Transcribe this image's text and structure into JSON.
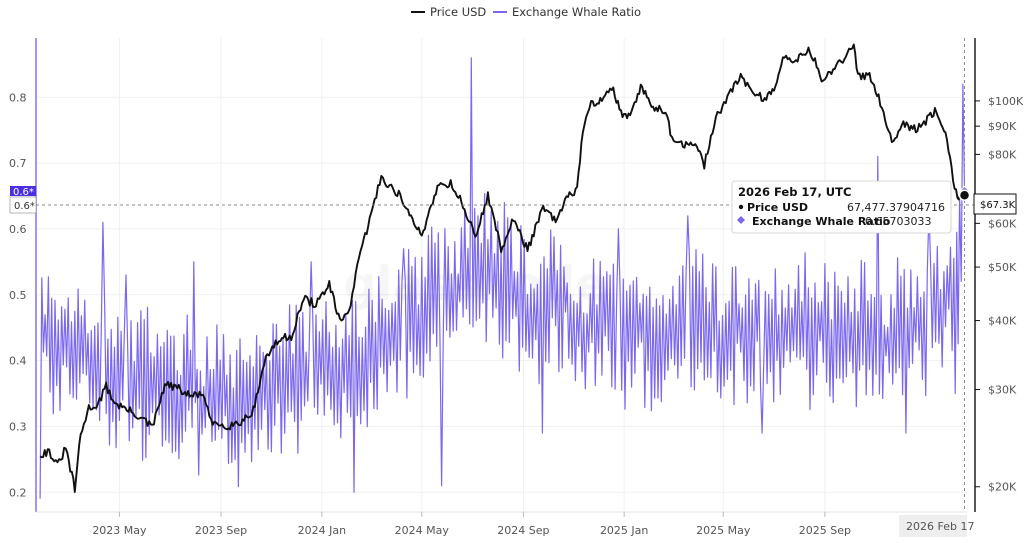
{
  "legend": {
    "price_label": "Price USD",
    "ratio_label": "Exchange Whale Ratio"
  },
  "tooltip": {
    "date": "2026 Feb 17, UTC",
    "price_label": "Price USD",
    "price_value": "67,477.37904716",
    "ratio_label": "Exchange Whale Ratio",
    "ratio_value": "0.65703033"
  },
  "badges": {
    "price_badge": "$67.3K",
    "ratio_badge": "0.6*",
    "ratio_badge_top": "0.6*",
    "date_badge": "2026 Feb 17"
  },
  "colors": {
    "price": "#111111",
    "ratio": "#7b68ee",
    "ratio_badge_bg": "#4b2ee0"
  },
  "chart_data": {
    "type": "line",
    "x_axis": {
      "type": "date",
      "range": [
        "2023-01-20",
        "2026-02-20"
      ],
      "tick_labels": [
        "2023 May",
        "2023 Sep",
        "2024 Jan",
        "2024 May",
        "2024 Sep",
        "2025 Jan",
        "2025 May",
        "2025 Sep"
      ]
    },
    "y_left": {
      "range": [
        0.17,
        0.89
      ],
      "tick_labels": [
        "0.2",
        "0.3",
        "0.4",
        "0.5",
        "0.6",
        "0.7",
        "0.8"
      ]
    },
    "y_right": {
      "scale": "log",
      "range": [
        18000,
        130000
      ],
      "tick_labels": [
        "$20K",
        "$30K",
        "$40K",
        "$50K",
        "$60K",
        "$80K",
        "$90K",
        "$100K"
      ]
    },
    "grid": true,
    "legend_position": "top-center",
    "series": [
      {
        "name": "Price USD",
        "axis": "right",
        "points": [
          [
            "2023-01-25",
            22900
          ],
          [
            "2023-02-05",
            23200
          ],
          [
            "2023-02-15",
            21800
          ],
          [
            "2023-02-25",
            23500
          ],
          [
            "2023-03-08",
            19800
          ],
          [
            "2023-03-15",
            24800
          ],
          [
            "2023-03-25",
            27800
          ],
          [
            "2023-04-05",
            28200
          ],
          [
            "2023-04-15",
            30400
          ],
          [
            "2023-04-25",
            28400
          ],
          [
            "2023-05-10",
            27600
          ],
          [
            "2023-05-25",
            26800
          ],
          [
            "2023-06-10",
            25600
          ],
          [
            "2023-06-25",
            30600
          ],
          [
            "2023-07-10",
            30200
          ],
          [
            "2023-07-25",
            29200
          ],
          [
            "2023-08-10",
            29500
          ],
          [
            "2023-08-20",
            26100
          ],
          [
            "2023-09-10",
            25800
          ],
          [
            "2023-09-25",
            26200
          ],
          [
            "2023-10-10",
            27500
          ],
          [
            "2023-10-25",
            34300
          ],
          [
            "2023-11-10",
            36900
          ],
          [
            "2023-11-25",
            37500
          ],
          [
            "2023-12-10",
            43800
          ],
          [
            "2023-12-25",
            42800
          ],
          [
            "2024-01-10",
            46500
          ],
          [
            "2024-01-23",
            39600
          ],
          [
            "2024-02-05",
            42700
          ],
          [
            "2024-02-15",
            51800
          ],
          [
            "2024-02-28",
            61000
          ],
          [
            "2024-03-13",
            73000
          ],
          [
            "2024-03-25",
            69500
          ],
          [
            "2024-04-05",
            67500
          ],
          [
            "2024-04-18",
            61200
          ],
          [
            "2024-05-01",
            57000
          ],
          [
            "2024-05-20",
            70200
          ],
          [
            "2024-06-05",
            71000
          ],
          [
            "2024-06-20",
            64800
          ],
          [
            "2024-07-05",
            56500
          ],
          [
            "2024-07-20",
            67500
          ],
          [
            "2024-08-05",
            53900
          ],
          [
            "2024-08-20",
            61000
          ],
          [
            "2024-09-06",
            53800
          ],
          [
            "2024-09-25",
            64000
          ],
          [
            "2024-10-10",
            60500
          ],
          [
            "2024-10-25",
            67000
          ],
          [
            "2024-11-05",
            69500
          ],
          [
            "2024-11-12",
            88500
          ],
          [
            "2024-11-22",
            98500
          ],
          [
            "2024-12-05",
            101000
          ],
          [
            "2024-12-17",
            106000
          ],
          [
            "2024-12-30",
            93500
          ],
          [
            "2025-01-10",
            94500
          ],
          [
            "2025-01-21",
            106000
          ],
          [
            "2025-02-05",
            97500
          ],
          [
            "2025-02-20",
            96500
          ],
          [
            "2025-02-28",
            84500
          ],
          [
            "2025-03-15",
            83500
          ],
          [
            "2025-03-30",
            82500
          ],
          [
            "2025-04-08",
            76500
          ],
          [
            "2025-04-22",
            93500
          ],
          [
            "2025-05-10",
            103500
          ],
          [
            "2025-05-22",
            111000
          ],
          [
            "2025-06-05",
            104000
          ],
          [
            "2025-06-22",
            100500
          ],
          [
            "2025-07-05",
            108500
          ],
          [
            "2025-07-14",
            121000
          ],
          [
            "2025-07-28",
            118500
          ],
          [
            "2025-08-14",
            123500
          ],
          [
            "2025-08-30",
            108500
          ],
          [
            "2025-09-15",
            115500
          ],
          [
            "2025-10-06",
            125000
          ],
          [
            "2025-10-11",
            111000
          ],
          [
            "2025-10-25",
            111500
          ],
          [
            "2025-11-05",
            102000
          ],
          [
            "2025-11-21",
            84500
          ],
          [
            "2025-12-05",
            91500
          ],
          [
            "2025-12-20",
            88500
          ],
          [
            "2026-01-05",
            93000
          ],
          [
            "2026-01-14",
            96500
          ],
          [
            "2026-01-25",
            88000
          ],
          [
            "2026-02-05",
            70000
          ],
          [
            "2026-02-10",
            66500
          ],
          [
            "2026-02-17",
            67477
          ]
        ]
      },
      {
        "name": "Exchange Whale Ratio",
        "axis": "left",
        "points": [
          [
            "2023-01-25",
            0.44
          ],
          [
            "2023-02-08",
            0.41
          ],
          [
            "2023-02-22",
            0.43
          ],
          [
            "2023-03-08",
            0.4
          ],
          [
            "2023-03-22",
            0.42
          ],
          [
            "2023-04-05",
            0.39
          ],
          [
            "2023-04-19",
            0.37
          ],
          [
            "2023-05-03",
            0.38
          ],
          [
            "2023-05-17",
            0.36
          ],
          [
            "2023-05-31",
            0.37
          ],
          [
            "2023-06-14",
            0.36
          ],
          [
            "2023-06-28",
            0.35
          ],
          [
            "2023-07-12",
            0.34
          ],
          [
            "2023-07-26",
            0.36
          ],
          [
            "2023-08-09",
            0.33
          ],
          [
            "2023-08-23",
            0.34
          ],
          [
            "2023-09-06",
            0.35
          ],
          [
            "2023-09-20",
            0.33
          ],
          [
            "2023-10-04",
            0.34
          ],
          [
            "2023-10-18",
            0.36
          ],
          [
            "2023-11-01",
            0.37
          ],
          [
            "2023-11-15",
            0.36
          ],
          [
            "2023-11-29",
            0.38
          ],
          [
            "2023-12-13",
            0.37
          ],
          [
            "2023-12-27",
            0.39
          ],
          [
            "2024-01-10",
            0.38
          ],
          [
            "2024-01-24",
            0.37
          ],
          [
            "2024-02-07",
            0.39
          ],
          [
            "2024-02-21",
            0.41
          ],
          [
            "2024-03-06",
            0.42
          ],
          [
            "2024-03-20",
            0.43
          ],
          [
            "2024-04-03",
            0.45
          ],
          [
            "2024-04-17",
            0.46
          ],
          [
            "2024-05-01",
            0.47
          ],
          [
            "2024-05-15",
            0.5
          ],
          [
            "2024-05-29",
            0.51
          ],
          [
            "2024-06-12",
            0.5
          ],
          [
            "2024-06-26",
            0.53
          ],
          [
            "2024-07-10",
            0.55
          ],
          [
            "2024-07-24",
            0.54
          ],
          [
            "2024-08-07",
            0.52
          ],
          [
            "2024-08-21",
            0.5
          ],
          [
            "2024-09-04",
            0.48
          ],
          [
            "2024-09-18",
            0.47
          ],
          [
            "2024-10-02",
            0.49
          ],
          [
            "2024-10-16",
            0.5
          ],
          [
            "2024-10-30",
            0.47
          ],
          [
            "2024-11-13",
            0.45
          ],
          [
            "2024-11-27",
            0.44
          ],
          [
            "2024-12-11",
            0.46
          ],
          [
            "2024-12-25",
            0.45
          ],
          [
            "2025-01-08",
            0.44
          ],
          [
            "2025-01-22",
            0.45
          ],
          [
            "2025-02-05",
            0.43
          ],
          [
            "2025-02-19",
            0.44
          ],
          [
            "2025-03-05",
            0.45
          ],
          [
            "2025-03-19",
            0.44
          ],
          [
            "2025-04-02",
            0.46
          ],
          [
            "2025-04-16",
            0.45
          ],
          [
            "2025-04-30",
            0.44
          ],
          [
            "2025-05-14",
            0.45
          ],
          [
            "2025-05-28",
            0.43
          ],
          [
            "2025-06-11",
            0.44
          ],
          [
            "2025-06-25",
            0.45
          ],
          [
            "2025-07-09",
            0.44
          ],
          [
            "2025-07-23",
            0.46
          ],
          [
            "2025-08-06",
            0.45
          ],
          [
            "2025-08-20",
            0.44
          ],
          [
            "2025-09-03",
            0.45
          ],
          [
            "2025-09-17",
            0.43
          ],
          [
            "2025-10-01",
            0.44
          ],
          [
            "2025-10-15",
            0.45
          ],
          [
            "2025-10-29",
            0.44
          ],
          [
            "2025-11-12",
            0.43
          ],
          [
            "2025-11-26",
            0.44
          ],
          [
            "2025-12-10",
            0.46
          ],
          [
            "2025-12-24",
            0.45
          ],
          [
            "2026-01-07",
            0.47
          ],
          [
            "2026-01-21",
            0.48
          ],
          [
            "2026-02-04",
            0.52
          ],
          [
            "2026-02-11",
            0.55
          ],
          [
            "2026-02-17",
            0.657
          ]
        ],
        "spikes": [
          [
            "2023-01-22",
            0.88
          ],
          [
            "2023-01-23",
            0.19
          ],
          [
            "2023-04-12",
            0.61
          ],
          [
            "2023-05-10",
            0.53
          ],
          [
            "2023-07-30",
            0.55
          ],
          [
            "2023-12-20",
            0.55
          ],
          [
            "2024-02-10",
            0.2
          ],
          [
            "2024-04-10",
            0.57
          ],
          [
            "2024-05-26",
            0.21
          ],
          [
            "2024-07-01",
            0.86
          ],
          [
            "2024-08-10",
            0.64
          ],
          [
            "2024-09-25",
            0.29
          ],
          [
            "2024-12-25",
            0.6
          ],
          [
            "2025-03-20",
            0.62
          ],
          [
            "2025-06-18",
            0.29
          ],
          [
            "2025-11-05",
            0.71
          ],
          [
            "2025-12-08",
            0.29
          ],
          [
            "2026-01-05",
            0.63
          ],
          [
            "2026-02-05",
            0.35
          ],
          [
            "2026-02-15",
            0.82
          ]
        ]
      }
    ]
  }
}
